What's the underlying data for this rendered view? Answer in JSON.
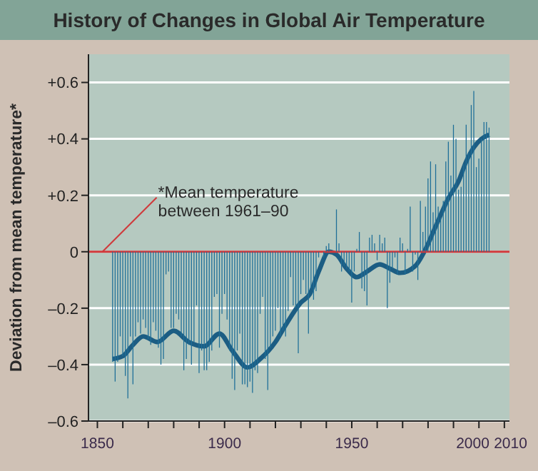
{
  "chart_data": {
    "type": "bar",
    "title": "History of Changes in Global Air Temperature",
    "ylabel": "Deviation from mean temperature*",
    "annotations": [
      {
        "text": "*Mean temperature\nbetween 1961–90",
        "x": 1852,
        "y": 0
      }
    ],
    "x": [
      1856,
      1857,
      1858,
      1859,
      1860,
      1861,
      1862,
      1863,
      1864,
      1865,
      1866,
      1867,
      1868,
      1869,
      1870,
      1871,
      1872,
      1873,
      1874,
      1875,
      1876,
      1877,
      1878,
      1879,
      1880,
      1881,
      1882,
      1883,
      1884,
      1885,
      1886,
      1887,
      1888,
      1889,
      1890,
      1891,
      1892,
      1893,
      1894,
      1895,
      1896,
      1897,
      1898,
      1899,
      1900,
      1901,
      1902,
      1903,
      1904,
      1905,
      1906,
      1907,
      1908,
      1909,
      1910,
      1911,
      1912,
      1913,
      1914,
      1915,
      1916,
      1917,
      1918,
      1919,
      1920,
      1921,
      1922,
      1923,
      1924,
      1925,
      1926,
      1927,
      1928,
      1929,
      1930,
      1931,
      1932,
      1933,
      1934,
      1935,
      1936,
      1937,
      1938,
      1939,
      1940,
      1941,
      1942,
      1943,
      1944,
      1945,
      1946,
      1947,
      1948,
      1949,
      1950,
      1951,
      1952,
      1953,
      1954,
      1955,
      1956,
      1957,
      1958,
      1959,
      1960,
      1961,
      1962,
      1963,
      1964,
      1965,
      1966,
      1967,
      1968,
      1969,
      1970,
      1971,
      1972,
      1973,
      1974,
      1975,
      1976,
      1977,
      1978,
      1979,
      1980,
      1981,
      1982,
      1983,
      1984,
      1985,
      1986,
      1987,
      1988,
      1989,
      1990,
      1991,
      1992,
      1993,
      1994,
      1995,
      1996,
      1997,
      1998,
      1999,
      2000,
      2001,
      2002,
      2003,
      2004
    ],
    "series": [
      {
        "color": "#1f6f98",
        "values": [
          -0.39,
          -0.46,
          -0.39,
          -0.3,
          -0.37,
          -0.44,
          -0.52,
          -0.3,
          -0.47,
          -0.3,
          -0.25,
          -0.29,
          -0.24,
          -0.27,
          -0.31,
          -0.33,
          -0.25,
          -0.28,
          -0.34,
          -0.4,
          -0.38,
          -0.08,
          -0.07,
          -0.27,
          -0.27,
          -0.22,
          -0.24,
          -0.3,
          -0.42,
          -0.38,
          -0.33,
          -0.4,
          -0.32,
          -0.19,
          -0.43,
          -0.35,
          -0.42,
          -0.42,
          -0.39,
          -0.35,
          -0.16,
          -0.15,
          -0.34,
          -0.22,
          -0.15,
          -0.24,
          -0.35,
          -0.45,
          -0.49,
          -0.35,
          -0.29,
          -0.47,
          -0.47,
          -0.48,
          -0.46,
          -0.5,
          -0.42,
          -0.43,
          -0.22,
          -0.16,
          -0.38,
          -0.49,
          -0.34,
          -0.3,
          -0.28,
          -0.2,
          -0.3,
          -0.28,
          -0.3,
          -0.21,
          -0.09,
          -0.19,
          -0.2,
          -0.36,
          -0.15,
          -0.1,
          -0.15,
          -0.29,
          -0.13,
          -0.17,
          -0.14,
          -0.02,
          0.0,
          -0.02,
          0.02,
          0.03,
          0.0,
          0.0,
          0.15,
          0.03,
          -0.07,
          -0.05,
          -0.06,
          -0.07,
          -0.18,
          -0.07,
          0.01,
          0.07,
          -0.13,
          -0.14,
          -0.19,
          0.05,
          0.06,
          0.03,
          -0.03,
          0.06,
          0.03,
          0.05,
          -0.2,
          -0.11,
          -0.06,
          -0.02,
          -0.08,
          0.05,
          0.03,
          -0.08,
          0.01,
          0.16,
          -0.07,
          -0.01,
          -0.1,
          0.18,
          0.07,
          0.16,
          0.26,
          0.32,
          0.14,
          0.31,
          0.16,
          0.12,
          0.18,
          0.32,
          0.39,
          0.27,
          0.45,
          0.4,
          0.22,
          0.23,
          0.31,
          0.45,
          0.35,
          0.52,
          0.57,
          0.3,
          0.33,
          0.4,
          0.46,
          0.46,
          0.44
        ]
      },
      {
        "type": "line",
        "color": "#1c5d83",
        "x": [
          1856,
          1860,
          1864,
          1868,
          1873.6,
          1880,
          1886,
          1892,
          1898,
          1903,
          1909,
          1914,
          1920,
          1924,
          1930,
          1933.5,
          1937,
          1941,
          1944,
          1948,
          1952,
          1956,
          1961,
          1965,
          1969,
          1975,
          1978.5,
          1983,
          1988,
          1992,
          1995,
          1998,
          2001,
          2004
        ],
        "values": [
          -0.38,
          -0.37,
          -0.33,
          -0.3,
          -0.32,
          -0.28,
          -0.32,
          -0.335,
          -0.29,
          -0.35,
          -0.41,
          -0.38,
          -0.32,
          -0.26,
          -0.18,
          -0.15,
          -0.07,
          0.0,
          -0.01,
          -0.06,
          -0.09,
          -0.07,
          -0.045,
          -0.06,
          -0.075,
          -0.05,
          0.0,
          0.09,
          0.19,
          0.25,
          0.32,
          0.37,
          0.4,
          0.415
        ]
      }
    ],
    "xlim": [
      1846.5,
      2012
    ],
    "xticks": [
      1850,
      {
        "value": 1860,
        "label": null
      },
      {
        "value": 1870,
        "label": null
      },
      {
        "value": 1880,
        "label": null
      },
      {
        "value": 1890,
        "label": null
      },
      1900,
      {
        "value": 1910,
        "label": null
      },
      {
        "value": 1920,
        "label": null
      },
      {
        "value": 1930,
        "label": null
      },
      {
        "value": 1940,
        "label": null
      },
      1950,
      {
        "value": 1960,
        "label": null
      },
      {
        "value": 1970,
        "label": null
      },
      {
        "value": 1980,
        "label": null
      },
      {
        "value": 1990,
        "label": null
      },
      2000,
      2010
    ],
    "ylim": [
      -0.6,
      0.7
    ],
    "yticks": [
      {
        "value": -0.6,
        "label": "–0.6"
      },
      {
        "value": -0.4,
        "label": "–0.4"
      },
      {
        "value": -0.2,
        "label": "–0.2"
      },
      0,
      {
        "value": 0.2,
        "label": "+0.2"
      },
      {
        "value": 0.4,
        "label": "+0.4"
      },
      {
        "value": 0.6,
        "label": "+0.6"
      }
    ],
    "grid": "y",
    "ref_lines": [
      {
        "axis": "y",
        "value": 0,
        "color": "#d0393b"
      }
    ]
  }
}
